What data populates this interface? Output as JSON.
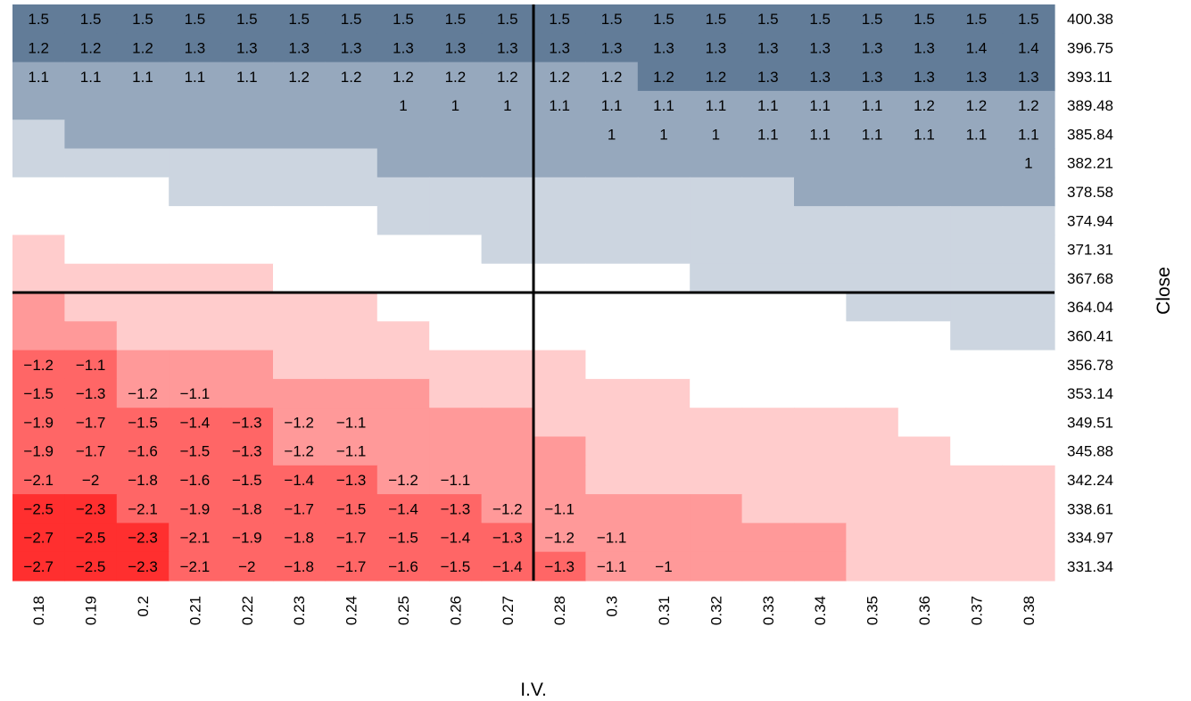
{
  "chart_data": {
    "type": "heatmap",
    "title": "",
    "xlabel": "I.V.",
    "ylabel": "Close",
    "x_ticks": [
      "0.18",
      "0.19",
      "0.2",
      "0.21",
      "0.22",
      "0.23",
      "0.24",
      "0.25",
      "0.26",
      "0.27",
      "0.28",
      "0.3",
      "0.31",
      "0.32",
      "0.33",
      "0.34",
      "0.35",
      "0.36",
      "0.37",
      "0.38"
    ],
    "y_ticks": [
      "400.38",
      "396.75",
      "393.11",
      "389.48",
      "385.84",
      "382.21",
      "378.58",
      "374.94",
      "371.31",
      "367.68",
      "364.04",
      "360.41",
      "356.78",
      "353.14",
      "349.51",
      "345.88",
      "342.24",
      "338.61",
      "334.97",
      "331.34"
    ],
    "colors": {
      "pos3": "#627C98",
      "pos2": "#96A8BD",
      "pos1": "#CCD5E0",
      "neutral": "#FFFFFF",
      "neg1": "#FFCCCC",
      "neg2": "#FF9999",
      "neg3": "#FF6666",
      "neg4": "#FF2F2F",
      "reference_lines": "#000000"
    },
    "color_levels": [
      [
        3,
        3,
        3,
        3,
        3,
        3,
        3,
        3,
        3,
        3,
        3,
        3,
        3,
        3,
        3,
        3,
        3,
        3,
        3,
        3
      ],
      [
        3,
        3,
        3,
        3,
        3,
        3,
        3,
        3,
        3,
        3,
        3,
        3,
        3,
        3,
        3,
        3,
        3,
        3,
        3,
        3
      ],
      [
        2,
        2,
        2,
        2,
        2,
        2,
        2,
        2,
        2,
        2,
        2,
        2,
        3,
        3,
        3,
        3,
        3,
        3,
        3,
        3
      ],
      [
        2,
        2,
        2,
        2,
        2,
        2,
        2,
        2,
        2,
        2,
        2,
        2,
        2,
        2,
        2,
        2,
        2,
        2,
        2,
        2
      ],
      [
        1,
        2,
        2,
        2,
        2,
        2,
        2,
        2,
        2,
        2,
        2,
        2,
        2,
        2,
        2,
        2,
        2,
        2,
        2,
        2
      ],
      [
        1,
        1,
        1,
        1,
        1,
        1,
        1,
        2,
        2,
        2,
        2,
        2,
        2,
        2,
        2,
        2,
        2,
        2,
        2,
        2
      ],
      [
        0,
        0,
        0,
        1,
        1,
        1,
        1,
        1,
        1,
        1,
        1,
        1,
        1,
        1,
        1,
        2,
        2,
        2,
        2,
        2
      ],
      [
        0,
        0,
        0,
        0,
        0,
        0,
        0,
        1,
        1,
        1,
        1,
        1,
        1,
        1,
        1,
        1,
        1,
        1,
        1,
        1
      ],
      [
        -1,
        0,
        0,
        0,
        0,
        0,
        0,
        0,
        0,
        1,
        1,
        1,
        1,
        1,
        1,
        1,
        1,
        1,
        1,
        1
      ],
      [
        -1,
        -1,
        -1,
        -1,
        -1,
        0,
        0,
        0,
        0,
        0,
        0,
        0,
        0,
        1,
        1,
        1,
        1,
        1,
        1,
        1
      ],
      [
        -2,
        -1,
        -1,
        -1,
        -1,
        -1,
        -1,
        0,
        0,
        0,
        0,
        0,
        0,
        0,
        0,
        0,
        1,
        1,
        1,
        1
      ],
      [
        -2,
        -2,
        -1,
        -1,
        -1,
        -1,
        -1,
        -1,
        0,
        0,
        0,
        0,
        0,
        0,
        0,
        0,
        0,
        0,
        1,
        1
      ],
      [
        -3,
        -3,
        -2,
        -2,
        -2,
        -1,
        -1,
        -1,
        -1,
        -1,
        -1,
        0,
        0,
        0,
        0,
        0,
        0,
        0,
        0,
        0
      ],
      [
        -3,
        -3,
        -2,
        -2,
        -2,
        -2,
        -2,
        -2,
        -1,
        -1,
        -1,
        -1,
        -1,
        0,
        0,
        0,
        0,
        0,
        0,
        0
      ],
      [
        -3,
        -3,
        -3,
        -3,
        -3,
        -2,
        -2,
        -2,
        -2,
        -2,
        -1,
        -1,
        -1,
        -1,
        -1,
        -1,
        -1,
        0,
        0,
        0
      ],
      [
        -3,
        -3,
        -3,
        -3,
        -3,
        -2,
        -2,
        -2,
        -2,
        -2,
        -2,
        -1,
        -1,
        -1,
        -1,
        -1,
        -1,
        -1,
        0,
        0
      ],
      [
        -3,
        -3,
        -3,
        -3,
        -3,
        -3,
        -3,
        -2,
        -2,
        -2,
        -2,
        -1,
        -1,
        -1,
        -1,
        -1,
        -1,
        -1,
        -1,
        -1
      ],
      [
        -4,
        -4,
        -3,
        -3,
        -3,
        -3,
        -3,
        -3,
        -3,
        -2,
        -2,
        -2,
        -2,
        -2,
        -1,
        -1,
        -1,
        -1,
        -1,
        -1
      ],
      [
        -4,
        -4,
        -4,
        -3,
        -3,
        -3,
        -3,
        -3,
        -3,
        -3,
        -2,
        -2,
        -2,
        -2,
        -2,
        -2,
        -1,
        -1,
        -1,
        -1
      ],
      [
        -4,
        -4,
        -4,
        -3,
        -3,
        -3,
        -3,
        -3,
        -3,
        -3,
        -3,
        -2,
        -2,
        -2,
        -2,
        -2,
        -1,
        -1,
        -1,
        -1
      ]
    ],
    "cell_labels": [
      [
        "1.5",
        "1.5",
        "1.5",
        "1.5",
        "1.5",
        "1.5",
        "1.5",
        "1.5",
        "1.5",
        "1.5",
        "1.5",
        "1.5",
        "1.5",
        "1.5",
        "1.5",
        "1.5",
        "1.5",
        "1.5",
        "1.5",
        "1.5"
      ],
      [
        "1.2",
        "1.2",
        "1.2",
        "1.3",
        "1.3",
        "1.3",
        "1.3",
        "1.3",
        "1.3",
        "1.3",
        "1.3",
        "1.3",
        "1.3",
        "1.3",
        "1.3",
        "1.3",
        "1.3",
        "1.3",
        "1.4",
        "1.4"
      ],
      [
        "1.1",
        "1.1",
        "1.1",
        "1.1",
        "1.1",
        "1.2",
        "1.2",
        "1.2",
        "1.2",
        "1.2",
        "1.2",
        "1.2",
        "1.2",
        "1.2",
        "1.3",
        "1.3",
        "1.3",
        "1.3",
        "1.3",
        "1.3"
      ],
      [
        "",
        "",
        "",
        "",
        "",
        "",
        "",
        "1",
        "1",
        "1",
        "1.1",
        "1.1",
        "1.1",
        "1.1",
        "1.1",
        "1.1",
        "1.1",
        "1.2",
        "1.2",
        "1.2"
      ],
      [
        "",
        "",
        "",
        "",
        "",
        "",
        "",
        "",
        "",
        "",
        "",
        "1",
        "1",
        "1",
        "1.1",
        "1.1",
        "1.1",
        "1.1",
        "1.1",
        "1.1"
      ],
      [
        "",
        "",
        "",
        "",
        "",
        "",
        "",
        "",
        "",
        "",
        "",
        "",
        "",
        "",
        "",
        "",
        "",
        "",
        "",
        "1"
      ],
      [
        "",
        "",
        "",
        "",
        "",
        "",
        "",
        "",
        "",
        "",
        "",
        "",
        "",
        "",
        "",
        "",
        "",
        "",
        "",
        ""
      ],
      [
        "",
        "",
        "",
        "",
        "",
        "",
        "",
        "",
        "",
        "",
        "",
        "",
        "",
        "",
        "",
        "",
        "",
        "",
        "",
        ""
      ],
      [
        "",
        "",
        "",
        "",
        "",
        "",
        "",
        "",
        "",
        "",
        "",
        "",
        "",
        "",
        "",
        "",
        "",
        "",
        "",
        ""
      ],
      [
        "",
        "",
        "",
        "",
        "",
        "",
        "",
        "",
        "",
        "",
        "",
        "",
        "",
        "",
        "",
        "",
        "",
        "",
        "",
        ""
      ],
      [
        "",
        "",
        "",
        "",
        "",
        "",
        "",
        "",
        "",
        "",
        "",
        "",
        "",
        "",
        "",
        "",
        "",
        "",
        "",
        ""
      ],
      [
        "",
        "",
        "",
        "",
        "",
        "",
        "",
        "",
        "",
        "",
        "",
        "",
        "",
        "",
        "",
        "",
        "",
        "",
        "",
        ""
      ],
      [
        "−1.2",
        "−1.1",
        "",
        "",
        "",
        "",
        "",
        "",
        "",
        "",
        "",
        "",
        "",
        "",
        "",
        "",
        "",
        "",
        "",
        ""
      ],
      [
        "−1.5",
        "−1.3",
        "−1.2",
        "−1.1",
        "",
        "",
        "",
        "",
        "",
        "",
        "",
        "",
        "",
        "",
        "",
        "",
        "",
        "",
        "",
        ""
      ],
      [
        "−1.9",
        "−1.7",
        "−1.5",
        "−1.4",
        "−1.3",
        "−1.2",
        "−1.1",
        "",
        "",
        "",
        "",
        "",
        "",
        "",
        "",
        "",
        "",
        "",
        "",
        ""
      ],
      [
        "−1.9",
        "−1.7",
        "−1.6",
        "−1.5",
        "−1.3",
        "−1.2",
        "−1.1",
        "",
        "",
        "",
        "",
        "",
        "",
        "",
        "",
        "",
        "",
        "",
        "",
        ""
      ],
      [
        "−2.1",
        "−2",
        "−1.8",
        "−1.6",
        "−1.5",
        "−1.4",
        "−1.3",
        "−1.2",
        "−1.1",
        "",
        "",
        "",
        "",
        "",
        "",
        "",
        "",
        "",
        "",
        ""
      ],
      [
        "−2.5",
        "−2.3",
        "−2.1",
        "−1.9",
        "−1.8",
        "−1.7",
        "−1.5",
        "−1.4",
        "−1.3",
        "−1.2",
        "−1.1",
        "",
        "",
        "",
        "",
        "",
        "",
        "",
        "",
        ""
      ],
      [
        "−2.7",
        "−2.5",
        "−2.3",
        "−2.1",
        "−1.9",
        "−1.8",
        "−1.7",
        "−1.5",
        "−1.4",
        "−1.3",
        "−1.2",
        "−1.1",
        "",
        "",
        "",
        "",
        "",
        "",
        "",
        ""
      ],
      [
        "−2.7",
        "−2.5",
        "−2.3",
        "−2.1",
        "−2",
        "−1.8",
        "−1.7",
        "−1.6",
        "−1.5",
        "−1.4",
        "−1.3",
        "−1.1",
        "−1",
        "",
        "",
        "",
        "",
        "",
        "",
        ""
      ]
    ],
    "reference_lines": {
      "vertical_between_x": [
        "0.27",
        "0.28"
      ],
      "horizontal_between_y": [
        "367.68",
        "364.04"
      ]
    },
    "legend": "none",
    "grid": false
  }
}
